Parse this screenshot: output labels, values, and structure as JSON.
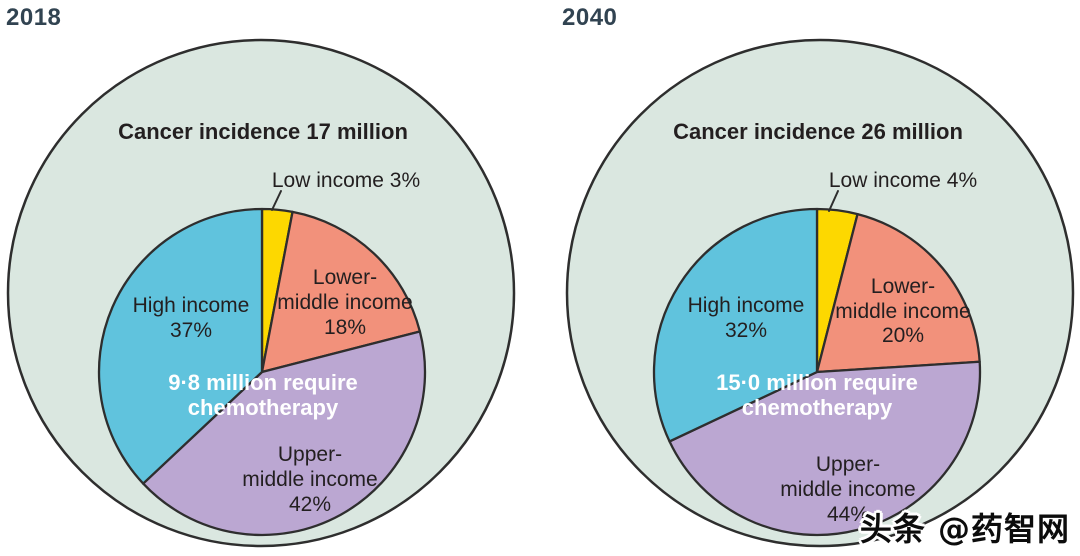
{
  "style": {
    "background": "#ffffff",
    "outer_fill": "#dae7e0",
    "outline_color": "#2e2e2e",
    "label_color": "#231f20",
    "year_color": "#314351",
    "center_text_color": "#ffffff"
  },
  "watermark": {
    "text": "头条 @药智网"
  },
  "chart_data": [
    {
      "type": "pie",
      "year_label": "2018",
      "title": "Cancer incidence 17 million",
      "center_label_lines": [
        "9·8 million require",
        "chemotherapy"
      ],
      "categories": [
        "Low income",
        "Lower-middle income",
        "Upper-middle income",
        "High income"
      ],
      "values": [
        3,
        18,
        42,
        37
      ],
      "colors": [
        "#fdd800",
        "#f2917b",
        "#bba7d2",
        "#60c3dd"
      ],
      "slice_labels": [
        [
          "Low income 3%"
        ],
        [
          "Lower-",
          "middle income",
          "18%"
        ],
        [
          "Upper-",
          "middle income",
          "42%"
        ],
        [
          "High income",
          "37%"
        ]
      ],
      "start_angle_deg": 0,
      "legend": "none"
    },
    {
      "type": "pie",
      "year_label": "2040",
      "title": "Cancer incidence 26 million",
      "center_label_lines": [
        "15·0 million require",
        "chemotherapy"
      ],
      "categories": [
        "Low income",
        "Lower-middle income",
        "Upper-middle income",
        "High income"
      ],
      "values": [
        4,
        20,
        44,
        32
      ],
      "colors": [
        "#fdd800",
        "#f2917b",
        "#bba7d2",
        "#60c3dd"
      ],
      "slice_labels": [
        [
          "Low income 4%"
        ],
        [
          "Lower-",
          "middle income",
          "20%"
        ],
        [
          "Upper-",
          "middle income",
          "44%"
        ],
        [
          "High income",
          "32%"
        ]
      ],
      "start_angle_deg": 0,
      "legend": "none"
    }
  ]
}
